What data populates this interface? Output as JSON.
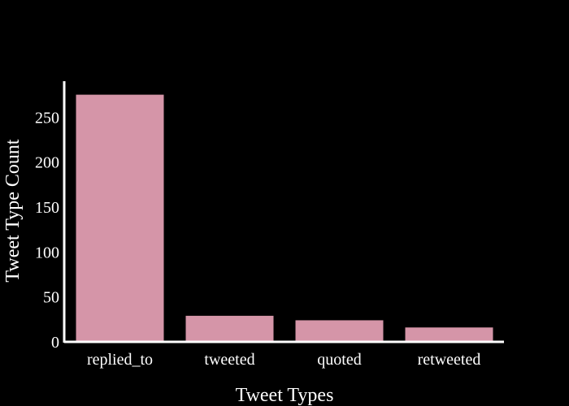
{
  "chart_data": {
    "type": "bar",
    "categories": [
      "replied_to",
      "tweeted",
      "quoted",
      "retweeted"
    ],
    "values": [
      275,
      29,
      24,
      16
    ],
    "xlabel": "Tweet Types",
    "ylabel": "Tweet Type Count",
    "ylim": [
      0,
      290
    ],
    "yticks": [
      0,
      50,
      100,
      150,
      200,
      250
    ],
    "grid": false,
    "bar_color": "#d595a8",
    "background": "#000000",
    "axis_color": "#ffffff"
  }
}
